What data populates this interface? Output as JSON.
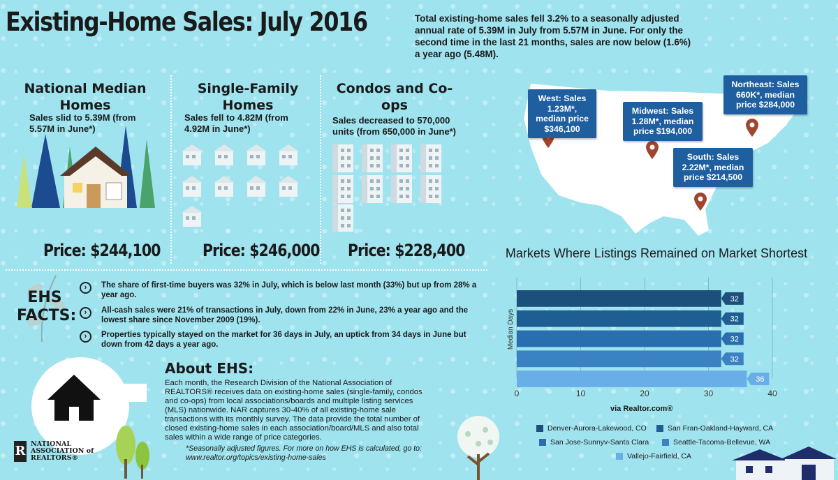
{
  "header": {
    "title": "Existing-Home Sales: July 2016",
    "intro": "Total existing-home sales fell 3.2% to a seasonally adjusted annual rate of 5.39M in July from 5.57M in June. For only the second time in the last 21 months, sales are now below (1.6%) a year ago (5.48M)."
  },
  "columns": [
    {
      "title": "National Median Homes",
      "sub": "Sales slid to 5.39M (from 5.57M in June*)",
      "price": "Price: $244,100"
    },
    {
      "title": "Single-Family Homes",
      "sub": "Sales fell to 4.82M (from 4.92M in June*)",
      "price": "Price: $246,000"
    },
    {
      "title": "Condos and Co-ops",
      "sub": "Sales decreased to 570,000 units (from 650,000 in June*)",
      "price": "Price: $228,400"
    }
  ],
  "facts": {
    "label": "EHS FACTS:",
    "items": [
      "The share of first-time buyers was 32% in July, which is below last month (33%) but up from 28% a year ago.",
      "All-cash sales were 21% of transactions in July, down from 22% in June, 23% a year ago and the lowest share since November 2009 (19%).",
      "Properties typically stayed on the market for 36 days in July, an uptick from 34 days in June but down from 42 days a year ago."
    ]
  },
  "about": {
    "title": "About EHS:",
    "text": "Each month, the Research Division of the National Association of REALTORS® receives data on existing-home sales (single-family, condos and co-ops) from local associations/boards and multiple listing services (MLS) nationwide. NAR captures 30-40% of all existing-home sale transactions with its monthly survey. The data provide the total number of closed existing-home sales in each association/board/MLS and also total sales within a wide range of price categories.",
    "footnote_line1": "*Seasonally adjusted figures. For more on how EHS is calculated, go to:",
    "footnote_line2": "www.realtor.org/topics/existing-home-sales"
  },
  "logo": {
    "mark": "R",
    "line1": "NATIONAL",
    "line2": "ASSOCIATION of",
    "line3": "REALTORS®"
  },
  "regions": [
    {
      "name": "West",
      "text": "West: Sales 1.23M*, median price $346,100"
    },
    {
      "name": "Midwest",
      "text": "Midwest: Sales 1.28M*, median price $194,000"
    },
    {
      "name": "Northeast",
      "text": "Northeast: Sales 660K*, median price $284,000"
    },
    {
      "name": "South",
      "text": "South: Sales 2.22M*, median price $214,500"
    }
  ],
  "chart_data": {
    "type": "bar",
    "orientation": "horizontal",
    "title": "Markets Where Listings Remained on Market Shortest",
    "ylabel": "Median Days",
    "xlabel": "",
    "source": "via Realtor.com®",
    "xlim": [
      0,
      40
    ],
    "xticks": [
      "0",
      "10",
      "20",
      "30",
      "40"
    ],
    "categories": [
      "Denver-Aurora-Lakewood, CO",
      "San Fran-Oakland-Hayward, CA",
      "San Jose-Sunnyv-Santa Clara",
      "Seattle-Tacoma-Bellevue, WA",
      "Vallejo-Fairfield, CA"
    ],
    "values": [
      32,
      32,
      32,
      32,
      36
    ],
    "colors": [
      "#1c4f7c",
      "#1f5e93",
      "#2a6fad",
      "#3b82c4",
      "#6aaee8"
    ],
    "legend_labels": [
      "Denver-Aurora-Lakewood, CO",
      "San Fran-Oakland-Hayward, CA",
      "San Jose-Sunnyv-Santa Clara",
      "Seattle-Tacoma-Bellevue, WA",
      "Vallejo-Fairfield, CA"
    ]
  }
}
